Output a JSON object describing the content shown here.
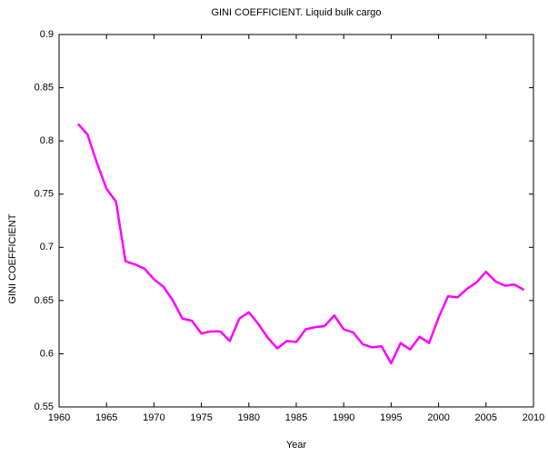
{
  "chart_data": {
    "type": "line",
    "title": "GINI COEFFICIENT. Liquid bulk cargo",
    "x_label": "Year",
    "y_label": "GINI COEFFICIENT",
    "x": [
      1962,
      1963,
      1964,
      1965,
      1966,
      1967,
      1968,
      1969,
      1970,
      1971,
      1972,
      1973,
      1974,
      1975,
      1976,
      1977,
      1978,
      1979,
      1980,
      1981,
      1982,
      1983,
      1984,
      1985,
      1986,
      1987,
      1988,
      1989,
      1990,
      1991,
      1992,
      1993,
      1994,
      1995,
      1996,
      1997,
      1998,
      1999,
      2000,
      2001,
      2002,
      2003,
      2004,
      2005,
      2006,
      2007,
      2008,
      2009
    ],
    "series": [
      {
        "name": "GINI COEFFICIENT",
        "color": "#ff00ff",
        "values": [
          0.816,
          0.806,
          0.779,
          0.755,
          0.743,
          0.687,
          0.684,
          0.68,
          0.67,
          0.663,
          0.65,
          0.633,
          0.631,
          0.619,
          0.621,
          0.621,
          0.612,
          0.633,
          0.639,
          0.628,
          0.615,
          0.605,
          0.612,
          0.611,
          0.623,
          0.625,
          0.626,
          0.636,
          0.623,
          0.62,
          0.609,
          0.606,
          0.607,
          0.591,
          0.61,
          0.604,
          0.616,
          0.61,
          0.634,
          0.654,
          0.653,
          0.661,
          0.667,
          0.677,
          0.668,
          0.664,
          0.665,
          0.66
        ]
      }
    ],
    "xlim": [
      1960,
      2010
    ],
    "xticks": [
      1960,
      1965,
      1970,
      1975,
      1980,
      1985,
      1990,
      1995,
      2000,
      2005,
      2010
    ],
    "ylim": [
      0.55,
      0.9
    ],
    "yticks": [
      0.55,
      0.6,
      0.65,
      0.7,
      0.75,
      0.8,
      0.85,
      0.9
    ],
    "grid": false
  }
}
